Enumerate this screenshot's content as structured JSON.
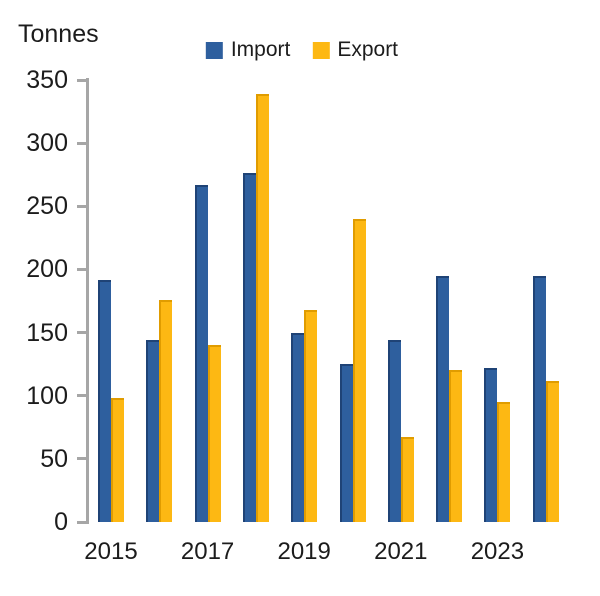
{
  "chart": {
    "axis_title": "Tonnes"
  },
  "chart_data": {
    "type": "bar",
    "title": "",
    "ylabel": "Tonnes",
    "xlabel": "",
    "categories": [
      "2015",
      "2016",
      "2017",
      "2018",
      "2019",
      "2020",
      "2021",
      "2022",
      "2023",
      "2024"
    ],
    "x_tick_labels": [
      "2015",
      "2017",
      "2019",
      "2021",
      "2023"
    ],
    "series": [
      {
        "name": "Import",
        "color": "#2e5f9e",
        "edge": "#1f4376",
        "values": [
          192,
          144,
          267,
          276,
          150,
          125,
          144,
          195,
          122,
          195
        ]
      },
      {
        "name": "Export",
        "color": "#fdb813",
        "edge": "#e09c00",
        "values": [
          98,
          176,
          140,
          339,
          168,
          240,
          67,
          120,
          95,
          112
        ]
      }
    ],
    "ylim": [
      0,
      350
    ],
    "y_ticks": [
      0,
      50,
      100,
      150,
      200,
      250,
      300,
      350
    ],
    "grid": false,
    "legend_position": "top-center",
    "axis_color": "#a6a6a6",
    "text_color": "#1c1c1c"
  }
}
